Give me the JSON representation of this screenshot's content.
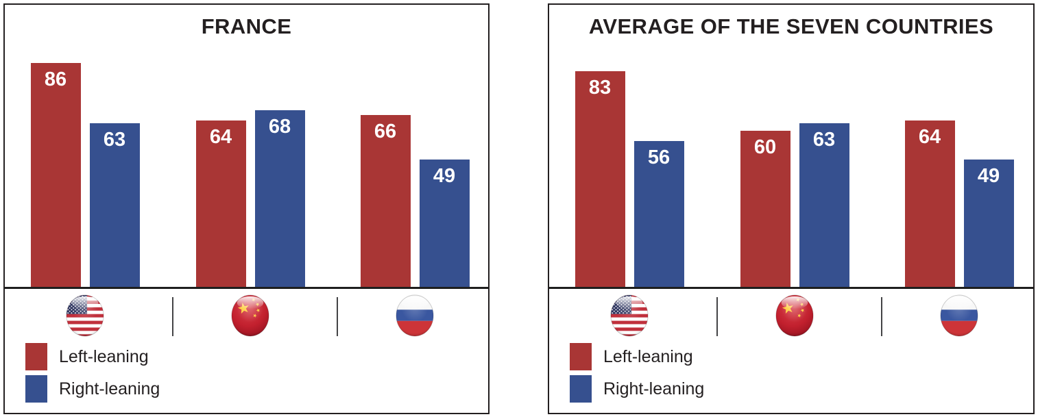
{
  "chart_data": [
    {
      "type": "bar",
      "title": "FRANCE",
      "categories": [
        "United States",
        "China",
        "Russia"
      ],
      "series": [
        {
          "name": "Left-leaning",
          "color": "#A93635",
          "values": [
            86,
            64,
            66
          ]
        },
        {
          "name": "Right-leaning",
          "color": "#36508F",
          "values": [
            63,
            68,
            49
          ]
        }
      ],
      "ylim": [
        0,
        100
      ],
      "value_labels": true,
      "grid": false,
      "legend_position": "bottom-left",
      "x_axis_style": "country flag icons"
    },
    {
      "type": "bar",
      "title": "AVERAGE OF THE SEVEN COUNTRIES",
      "categories": [
        "United States",
        "China",
        "Russia"
      ],
      "series": [
        {
          "name": "Left-leaning",
          "color": "#A93635",
          "values": [
            83,
            60,
            64
          ]
        },
        {
          "name": "Right-leaning",
          "color": "#36508F",
          "values": [
            56,
            63,
            49
          ]
        }
      ],
      "ylim": [
        0,
        100
      ],
      "value_labels": true,
      "grid": false,
      "legend_position": "bottom-left",
      "x_axis_style": "country flag icons"
    }
  ],
  "colors": {
    "left_leaning": "#A93635",
    "right_leaning": "#36508F",
    "border": "#231f20",
    "axis_line": "#1e1e1e",
    "title_text": "#231f20"
  },
  "icons": {
    "group_flags": [
      "usa-flag-icon",
      "china-flag-icon",
      "russia-flag-icon"
    ]
  }
}
